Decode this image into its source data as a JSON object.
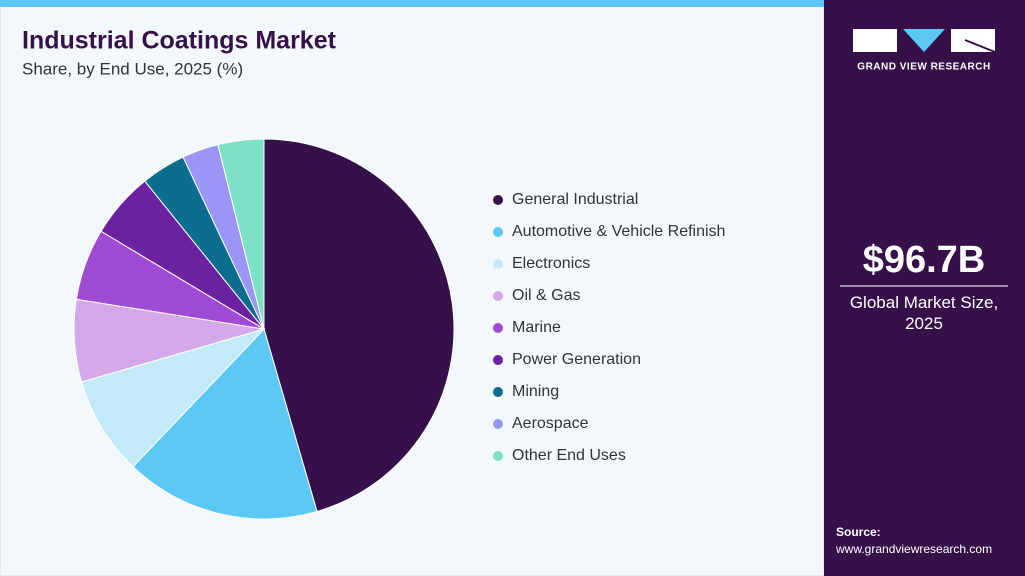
{
  "chart_data": {
    "type": "pie",
    "title": "Industrial Coatings Market",
    "subtitle": "Share, by End Use, 2025 (%)",
    "categories": [
      "General Industrial",
      "Automotive & Vehicle Refinish",
      "Electronics",
      "Oil & Gas",
      "Marine",
      "Power Generation",
      "Mining",
      "Aerospace",
      "Other End Uses"
    ],
    "values": [
      45.5,
      16.6,
      8.4,
      7.0,
      6.1,
      5.6,
      3.8,
      3.1,
      3.9
    ],
    "colors": [
      "#35104a",
      "#5bc8f5",
      "#c2eaf9",
      "#d4a8e9",
      "#a04bd6",
      "#6a22a0",
      "#0b6e8f",
      "#9b95f5",
      "#7fe0c8"
    ]
  },
  "brand": "GRAND VIEW RESEARCH",
  "market_size": "$96.7B",
  "market_label": "Global Market Size, 2025",
  "source_label": "Source:",
  "source_url": "www.grandviewresearch.com"
}
